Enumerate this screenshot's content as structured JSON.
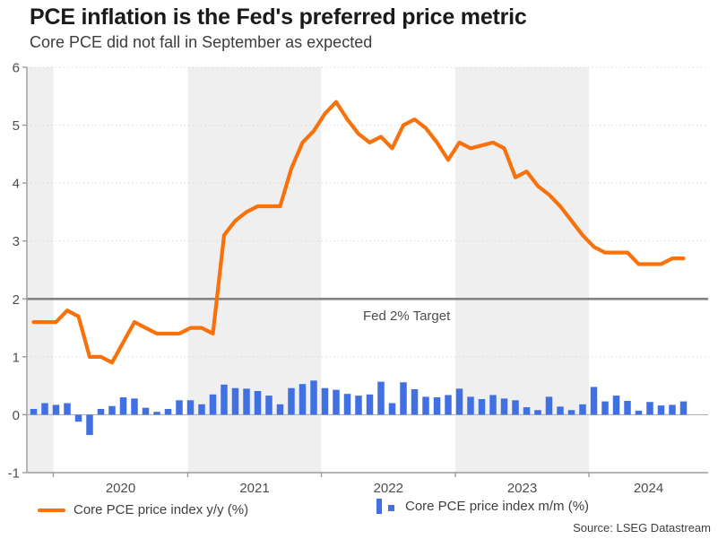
{
  "header": {
    "title": "PCE inflation is the Fed's preferred price metric",
    "subtitle": "Core PCE did not fall in September as expected"
  },
  "legend": {
    "yoy_label": "Core PCE price index y/y (%)",
    "mom_label": "Core PCE price index m/m (%)"
  },
  "footer": {
    "source": "Source: LSEG Datastream"
  },
  "colors": {
    "line_orange": "#F7720C",
    "bar_blue": "#4170E3",
    "fed_line_gray": "#848484",
    "band_gray": "#EFEFEF",
    "grid_dot": "#D9D9D9",
    "zero_line": "#B3B3B3",
    "axis_gray": "#9B9B9B",
    "tick_text": "#4D4D4D"
  },
  "chart_data": {
    "type": "line+bar",
    "title": "PCE inflation is the Fed's preferred price metric",
    "subtitle": "Core PCE did not fall in September as expected",
    "ylim": [
      -1,
      6
    ],
    "yticks": [
      6,
      5,
      4,
      3,
      2,
      1,
      0,
      -1
    ],
    "grid": "dotted horizontal gridlines, alternating year shading",
    "legend_position": "bottom",
    "x_year_labels": [
      "2020",
      "2021",
      "2022",
      "2023",
      "2024"
    ],
    "annotation": {
      "label": "Fed 2% Target",
      "value": 2
    },
    "months": [
      "2019-11",
      "2019-12",
      "2020-01",
      "2020-02",
      "2020-03",
      "2020-04",
      "2020-05",
      "2020-06",
      "2020-07",
      "2020-08",
      "2020-09",
      "2020-10",
      "2020-11",
      "2020-12",
      "2021-01",
      "2021-02",
      "2021-03",
      "2021-04",
      "2021-05",
      "2021-06",
      "2021-07",
      "2021-08",
      "2021-09",
      "2021-10",
      "2021-11",
      "2021-12",
      "2022-01",
      "2022-02",
      "2022-03",
      "2022-04",
      "2022-05",
      "2022-06",
      "2022-07",
      "2022-08",
      "2022-09",
      "2022-10",
      "2022-11",
      "2022-12",
      "2023-01",
      "2023-02",
      "2023-03",
      "2023-04",
      "2023-05",
      "2023-06",
      "2023-07",
      "2023-08",
      "2023-09",
      "2023-10",
      "2023-11",
      "2023-12",
      "2024-01",
      "2024-02",
      "2024-03",
      "2024-04",
      "2024-05",
      "2024-06",
      "2024-07",
      "2024-08",
      "2024-09"
    ],
    "series": [
      {
        "name": "Core PCE price index y/y (%)",
        "type": "line",
        "color": "#F7720C",
        "values": [
          1.6,
          1.6,
          1.6,
          1.8,
          1.7,
          1.0,
          1.0,
          0.9,
          1.25,
          1.6,
          1.5,
          1.4,
          1.4,
          1.4,
          1.5,
          1.5,
          1.4,
          3.1,
          3.35,
          3.5,
          3.6,
          3.6,
          3.6,
          4.25,
          4.7,
          4.9,
          5.2,
          5.4,
          5.1,
          4.85,
          4.7,
          4.8,
          4.6,
          5.0,
          5.1,
          4.95,
          4.7,
          4.4,
          4.7,
          4.6,
          4.65,
          4.7,
          4.6,
          4.1,
          4.2,
          3.95,
          3.8,
          3.6,
          3.35,
          3.1,
          2.9,
          2.8,
          2.8,
          2.8,
          2.6,
          2.6,
          2.6,
          2.7,
          2.7
        ]
      },
      {
        "name": "Core PCE price index m/m (%)",
        "type": "bar",
        "color": "#4170E3",
        "values": [
          0.1,
          0.2,
          0.17,
          0.2,
          -0.12,
          -0.35,
          0.1,
          0.15,
          0.3,
          0.28,
          0.12,
          0.05,
          0.1,
          0.25,
          0.25,
          0.18,
          0.35,
          0.52,
          0.46,
          0.45,
          0.41,
          0.33,
          0.18,
          0.46,
          0.53,
          0.59,
          0.46,
          0.43,
          0.36,
          0.33,
          0.35,
          0.57,
          0.2,
          0.56,
          0.44,
          0.31,
          0.3,
          0.34,
          0.45,
          0.31,
          0.27,
          0.34,
          0.28,
          0.25,
          0.13,
          0.08,
          0.31,
          0.14,
          0.08,
          0.18,
          0.48,
          0.23,
          0.33,
          0.24,
          0.07,
          0.22,
          0.16,
          0.17,
          0.23
        ]
      }
    ]
  }
}
